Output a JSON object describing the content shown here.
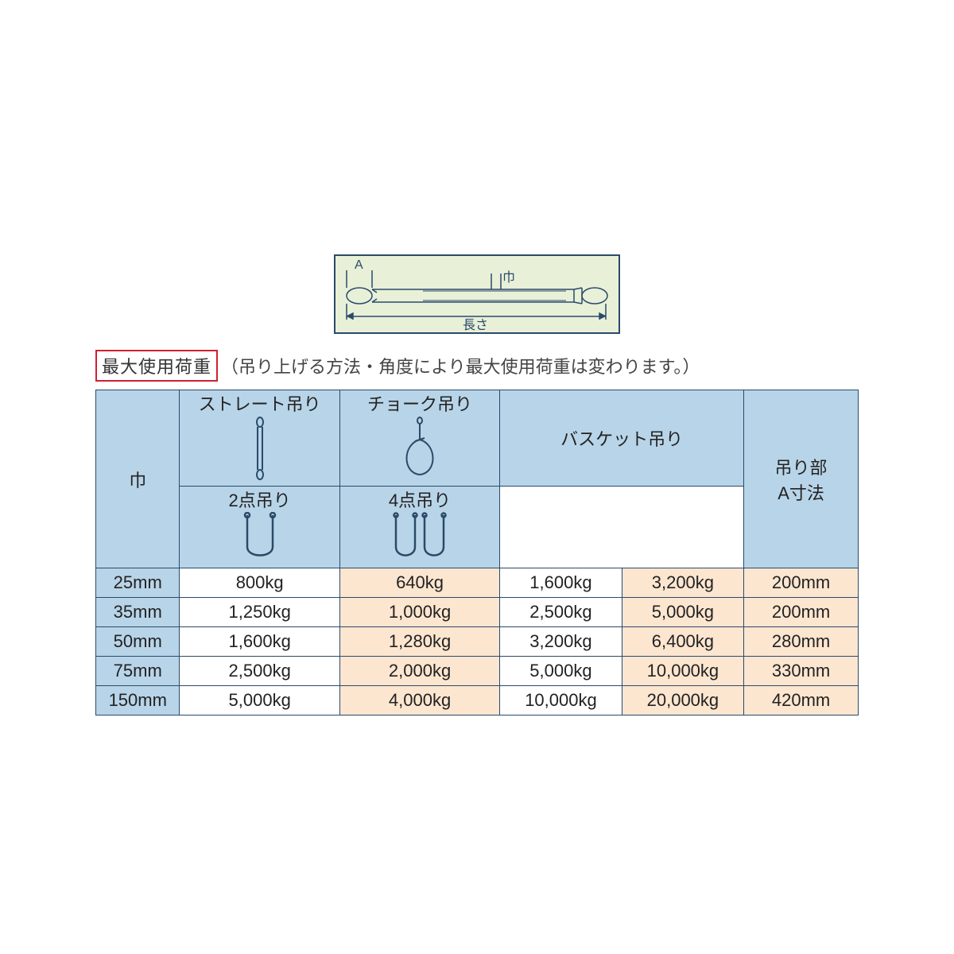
{
  "colors": {
    "border": "#2a4a6a",
    "header_bg": "#b8d4e8",
    "peach_bg": "#fde6d0",
    "diagram_bg": "#e8f0d8",
    "title_border": "#d02030",
    "page_bg": "#ffffff",
    "text": "#222222",
    "stroke": "#2a4a6a"
  },
  "diagram": {
    "label_A": "A",
    "label_width": "巾",
    "label_length": "長さ"
  },
  "title": {
    "box": "最大使用荷重",
    "note": "（吊り上げる方法・角度により最大使用荷重は変わります。）"
  },
  "headers": {
    "width": "巾",
    "straight": "ストレート吊り",
    "choke": "チョーク吊り",
    "basket": "バスケット吊り",
    "basket2": "2点吊り",
    "basket4": "4点吊り",
    "adim": "吊り部\nA寸法"
  },
  "rows": [
    {
      "w": "25mm",
      "straight": "800kg",
      "choke": "640kg",
      "b2": "1,600kg",
      "b4": "3,200kg",
      "a": "200mm"
    },
    {
      "w": "35mm",
      "straight": "1,250kg",
      "choke": "1,000kg",
      "b2": "2,500kg",
      "b4": "5,000kg",
      "a": "200mm"
    },
    {
      "w": "50mm",
      "straight": "1,600kg",
      "choke": "1,280kg",
      "b2": "3,200kg",
      "b4": "6,400kg",
      "a": "280mm"
    },
    {
      "w": "75mm",
      "straight": "2,500kg",
      "choke": "2,000kg",
      "b2": "5,000kg",
      "b4": "10,000kg",
      "a": "330mm"
    },
    {
      "w": "150mm",
      "straight": "5,000kg",
      "choke": "4,000kg",
      "b2": "10,000kg",
      "b4": "20,000kg",
      "a": "420mm"
    }
  ],
  "table_style": {
    "col_widths_pct": [
      11,
      21,
      21,
      16,
      16,
      15
    ],
    "header_row1_h": 36,
    "header_row2_h": 88,
    "data_row_h": 36,
    "font_size": 22
  }
}
